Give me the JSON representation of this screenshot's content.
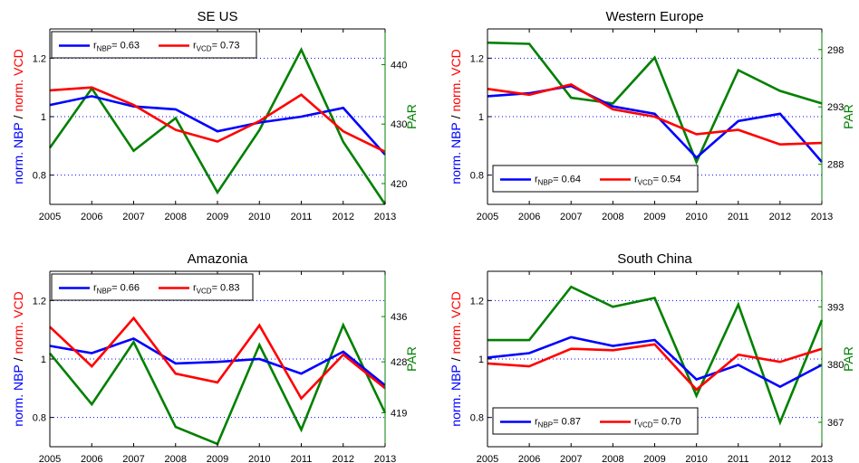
{
  "colors": {
    "nbp": "#0000ff",
    "vcd": "#ff0000",
    "par": "#008000",
    "axis": "#000000",
    "grid": "#0000ff"
  },
  "labels": {
    "ylabel_nbp": "norm. NBP",
    "ylabel_sep": " / ",
    "ylabel_vcd": "norm. VCD",
    "ylabel_right": "PAR"
  },
  "chart_data": [
    {
      "type": "line",
      "title": "SE US",
      "x": [
        2005,
        2006,
        2007,
        2008,
        2009,
        2010,
        2011,
        2012,
        2013
      ],
      "ylim_left": [
        0.7,
        1.3
      ],
      "yticks_left": [
        0.8,
        1,
        1.2
      ],
      "yticks_left_labels": [
        "0.8",
        "1",
        "1.2"
      ],
      "ylim_right": [
        416.5,
        446
      ],
      "yticks_right": [
        420,
        430,
        440
      ],
      "yticks_right_labels": [
        "420",
        "430",
        "440"
      ],
      "grid": "horizontal-dotted",
      "legend_position": "top-left",
      "series": [
        {
          "name": "NBP",
          "axis": "left",
          "values": [
            1.04,
            1.07,
            1.035,
            1.025,
            0.95,
            0.98,
            1.0,
            1.03,
            0.87
          ]
        },
        {
          "name": "VCD",
          "axis": "left",
          "values": [
            1.09,
            1.1,
            1.04,
            0.955,
            0.915,
            0.985,
            1.075,
            0.95,
            0.88
          ]
        },
        {
          "name": "PAR",
          "axis": "right",
          "values": [
            426,
            436,
            425.5,
            431,
            418.5,
            429,
            442.5,
            427,
            416.5
          ]
        }
      ],
      "legend": [
        {
          "sub": "NBP",
          "value": "= 0.63"
        },
        {
          "sub": "VCD",
          "value": "= 0.73"
        }
      ]
    },
    {
      "type": "line",
      "title": "Western Europe",
      "x": [
        2005,
        2006,
        2007,
        2008,
        2009,
        2010,
        2011,
        2012,
        2013
      ],
      "ylim_left": [
        0.7,
        1.3
      ],
      "yticks_left": [
        0.8,
        1,
        1.2
      ],
      "yticks_left_labels": [
        "0.8",
        "1",
        "1.2"
      ],
      "ylim_right": [
        284.5,
        299.8
      ],
      "yticks_right": [
        288,
        293,
        298
      ],
      "yticks_right_labels": [
        "288",
        "293",
        "298"
      ],
      "grid": "horizontal-dotted",
      "legend_position": "bottom-left",
      "series": [
        {
          "name": "NBP",
          "axis": "left",
          "values": [
            1.07,
            1.08,
            1.105,
            1.035,
            1.01,
            0.86,
            0.985,
            1.01,
            0.845
          ]
        },
        {
          "name": "VCD",
          "axis": "left",
          "values": [
            1.095,
            1.075,
            1.11,
            1.025,
            1.0,
            0.94,
            0.955,
            0.905,
            0.91
          ]
        },
        {
          "name": "PAR",
          "axis": "right",
          "values": [
            298.6,
            298.5,
            293.8,
            293.3,
            297.3,
            288.2,
            296.2,
            294.4,
            293.3
          ]
        }
      ],
      "legend": [
        {
          "sub": "NBP",
          "value": "= 0.64"
        },
        {
          "sub": "VCD",
          "value": "= 0.54"
        }
      ]
    },
    {
      "type": "line",
      "title": "Amazonia",
      "x": [
        2005,
        2006,
        2007,
        2008,
        2009,
        2010,
        2011,
        2012,
        2013
      ],
      "ylim_left": [
        0.7,
        1.3
      ],
      "yticks_left": [
        0.8,
        1,
        1.2
      ],
      "yticks_left_labels": [
        "0.8",
        "1",
        "1.2"
      ],
      "ylim_right": [
        413,
        444
      ],
      "yticks_right": [
        419,
        428,
        436
      ],
      "yticks_right_labels": [
        "419",
        "428",
        "436"
      ],
      "grid": "horizontal-dotted",
      "legend_position": "top-left",
      "series": [
        {
          "name": "NBP",
          "axis": "left",
          "values": [
            1.045,
            1.02,
            1.07,
            0.985,
            0.99,
            1.0,
            0.95,
            1.025,
            0.91
          ]
        },
        {
          "name": "VCD",
          "axis": "left",
          "values": [
            1.11,
            0.975,
            1.14,
            0.95,
            0.92,
            1.115,
            0.865,
            1.015,
            0.9
          ]
        },
        {
          "name": "PAR",
          "axis": "right",
          "values": [
            429.5,
            420.5,
            431.5,
            416.5,
            413.5,
            431,
            416,
            434.5,
            419
          ]
        }
      ],
      "legend": [
        {
          "sub": "NBP",
          "value": "= 0.66"
        },
        {
          "sub": "VCD",
          "value": "= 0.83"
        }
      ]
    },
    {
      "type": "line",
      "title": "South China",
      "x": [
        2005,
        2006,
        2007,
        2008,
        2009,
        2010,
        2011,
        2012,
        2013
      ],
      "ylim_left": [
        0.7,
        1.3
      ],
      "yticks_left": [
        0.8,
        1,
        1.2
      ],
      "yticks_left_labels": [
        "0.8",
        "1",
        "1.2"
      ],
      "ylim_right": [
        361.5,
        401
      ],
      "yticks_right": [
        367,
        380,
        393
      ],
      "yticks_right_labels": [
        "367",
        "380",
        "393"
      ],
      "grid": "horizontal-dotted",
      "legend_position": "bottom-left",
      "series": [
        {
          "name": "NBP",
          "axis": "left",
          "values": [
            1.005,
            1.02,
            1.075,
            1.045,
            1.065,
            0.93,
            0.98,
            0.905,
            0.98
          ]
        },
        {
          "name": "VCD",
          "axis": "left",
          "values": [
            0.985,
            0.975,
            1.035,
            1.03,
            1.05,
            0.895,
            1.015,
            0.99,
            1.035
          ]
        },
        {
          "name": "PAR",
          "axis": "right",
          "values": [
            385.5,
            385.5,
            397.5,
            393,
            395,
            373,
            393.5,
            367,
            390
          ]
        }
      ],
      "legend": [
        {
          "sub": "NBP",
          "value": "= 0.87"
        },
        {
          "sub": "VCD",
          "value": "= 0.70"
        }
      ]
    }
  ]
}
